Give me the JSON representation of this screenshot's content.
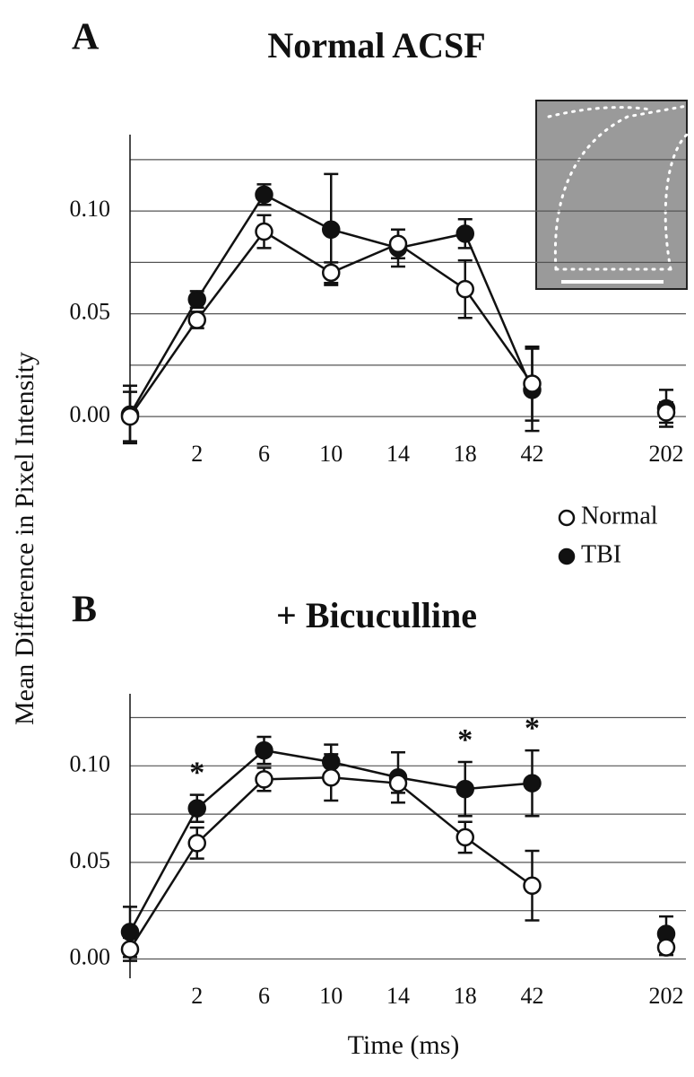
{
  "chart_data": [
    {
      "type": "line",
      "panel": "A",
      "title": "Normal ACSF",
      "ylabel": "Mean Difference in Pixel Intensity",
      "categories": [
        null,
        "2",
        "6",
        "10",
        "14",
        "18",
        "42",
        null,
        "202"
      ],
      "series": [
        {
          "name": "Normal",
          "color": "#ffffff",
          "values": [
            0.0,
            0.047,
            0.09,
            0.07,
            0.084,
            0.062,
            0.016,
            null,
            0.002
          ],
          "errors": [
            0.012,
            0.004,
            0.008,
            0.005,
            0.007,
            0.014,
            0.018,
            null,
            0.005
          ]
        },
        {
          "name": "TBI",
          "color": "#111111",
          "values": [
            0.001,
            0.057,
            0.108,
            0.091,
            0.082,
            0.089,
            0.013,
            null,
            0.004
          ],
          "errors": [
            0.014,
            0.004,
            0.005,
            0.027,
            0.009,
            0.007,
            0.02,
            null,
            0.009
          ]
        }
      ],
      "ylim": [
        -0.01,
        0.135
      ],
      "yticks": [
        {
          "value": 0,
          "label": "0.00"
        },
        {
          "value": 0.05,
          "label": "0.05"
        },
        {
          "value": 0.1,
          "label": "0.10"
        }
      ],
      "yminor": [
        0.025,
        0.075,
        0.125
      ],
      "grid": true,
      "legend": "lower right"
    },
    {
      "type": "line",
      "panel": "B",
      "title": "+ Bicuculline",
      "xlabel": "Time (ms)",
      "categories": [
        null,
        "2",
        "6",
        "10",
        "14",
        "18",
        "42",
        null,
        "202"
      ],
      "significance": [
        null,
        "*",
        null,
        null,
        null,
        "*",
        "*",
        null,
        null
      ],
      "series": [
        {
          "name": "Normal",
          "color": "#ffffff",
          "values": [
            0.005,
            0.06,
            0.093,
            0.094,
            0.091,
            0.063,
            0.038,
            null,
            0.006
          ],
          "errors": [
            0.006,
            0.008,
            0.006,
            0.012,
            0.005,
            0.008,
            0.018,
            null,
            0.004
          ]
        },
        {
          "name": "TBI",
          "color": "#111111",
          "values": [
            0.014,
            0.078,
            0.108,
            0.102,
            0.094,
            0.088,
            0.091,
            null,
            0.013
          ],
          "errors": [
            0.013,
            0.007,
            0.007,
            0.009,
            0.013,
            0.014,
            0.017,
            null,
            0.009
          ]
        }
      ],
      "ylim": [
        -0.01,
        0.135
      ],
      "yticks": [
        {
          "value": 0,
          "label": "0.00"
        },
        {
          "value": 0.05,
          "label": "0.05"
        },
        {
          "value": 0.1,
          "label": "0.10"
        }
      ],
      "yminor": [
        0.025,
        0.075,
        0.125
      ],
      "grid": true
    }
  ]
}
